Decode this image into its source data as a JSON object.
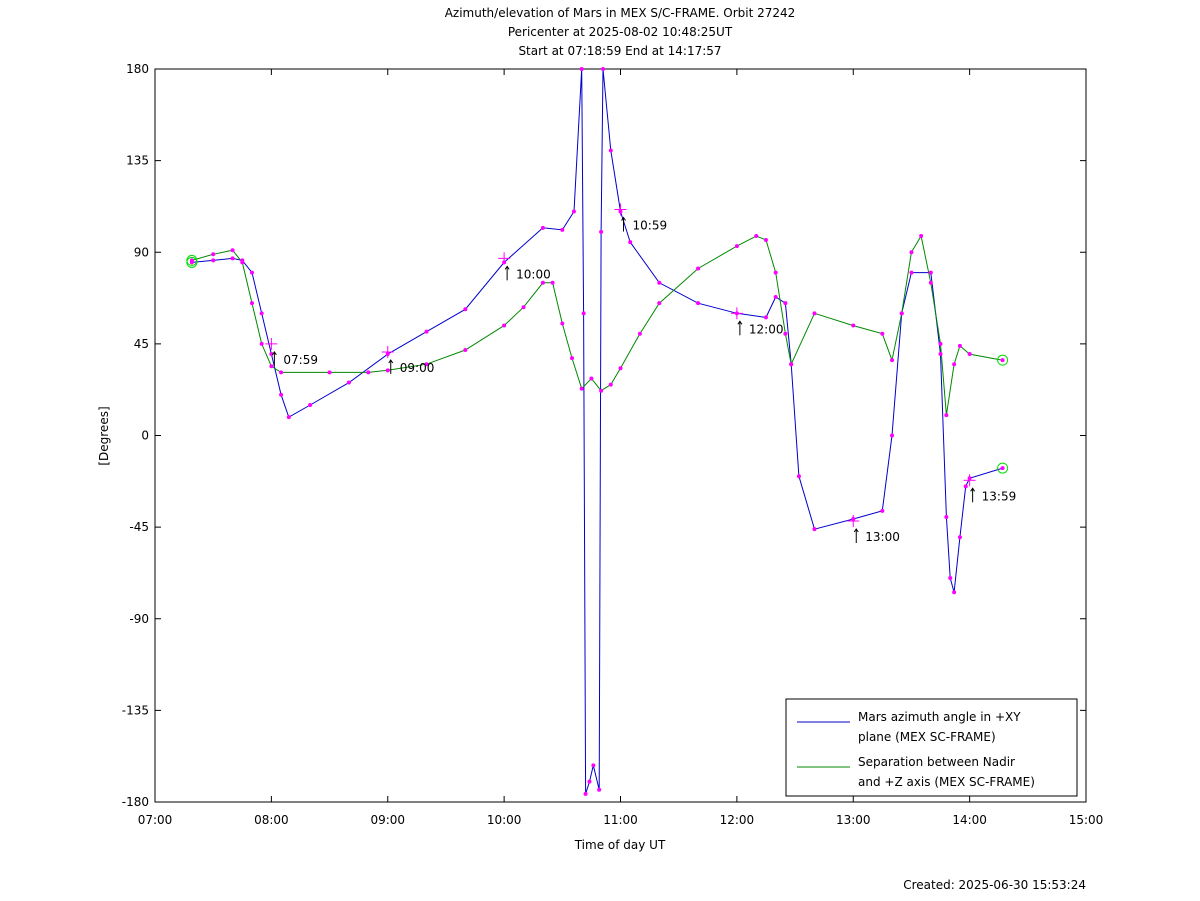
{
  "chart_data": {
    "type": "line",
    "title_lines": [
      "Azimuth/elevation of Mars in MEX S/C-FRAME.  Orbit 27242",
      "Pericenter at 2025-08-02 10:48:25UT",
      "Start at 07:18:59 End at 14:17:57"
    ],
    "xlabel": "Time of day UT",
    "ylabel": "[Degrees]",
    "xlim": [
      "07:00",
      "15:00"
    ],
    "ylim": [
      -180,
      180
    ],
    "x_ticks": [
      "07:00",
      "08:00",
      "09:00",
      "10:00",
      "11:00",
      "12:00",
      "13:00",
      "14:00",
      "15:00"
    ],
    "y_ticks": [
      180,
      135,
      90,
      45,
      0,
      -45,
      -90,
      -135,
      -180
    ],
    "legend_position": "bottom-right",
    "series": [
      {
        "name": "Mars azimuth angle in +XY plane (MEX SC-FRAME)",
        "legend_lines": [
          "Mars azimuth angle in +XY",
          "plane (MEX SC-FRAME)"
        ],
        "color": "#0000cc",
        "points": [
          [
            "07:19",
            85
          ],
          [
            "07:30",
            86
          ],
          [
            "07:40",
            87
          ],
          [
            "07:45",
            86
          ],
          [
            "07:50",
            80
          ],
          [
            "07:55",
            60
          ],
          [
            "08:00",
            40
          ],
          [
            "08:05",
            20
          ],
          [
            "08:09",
            9
          ],
          [
            "08:20",
            15
          ],
          [
            "08:40",
            26
          ],
          [
            "09:00",
            40
          ],
          [
            "09:20",
            51
          ],
          [
            "09:40",
            62
          ],
          [
            "10:00",
            85
          ],
          [
            "10:20",
            102
          ],
          [
            "10:30",
            101
          ],
          [
            "10:36",
            110
          ],
          [
            "10:40",
            180
          ],
          [
            "10:41",
            60
          ],
          [
            "10:42",
            -176
          ],
          [
            "10:44",
            -170
          ],
          [
            "10:46",
            -162
          ],
          [
            "10:49",
            -174
          ],
          [
            "10:50",
            100
          ],
          [
            "10:51",
            180
          ],
          [
            "10:55",
            140
          ],
          [
            "11:00",
            110
          ],
          [
            "11:05",
            95
          ],
          [
            "11:20",
            75
          ],
          [
            "11:40",
            65
          ],
          [
            "12:00",
            60
          ],
          [
            "12:15",
            58
          ],
          [
            "12:20",
            68
          ],
          [
            "12:25",
            65
          ],
          [
            "12:28",
            35
          ],
          [
            "12:32",
            -20
          ],
          [
            "12:40",
            -46
          ],
          [
            "13:00",
            -41
          ],
          [
            "13:15",
            -37
          ],
          [
            "13:20",
            0
          ],
          [
            "13:25",
            60
          ],
          [
            "13:30",
            80
          ],
          [
            "13:40",
            80
          ],
          [
            "13:45",
            40
          ],
          [
            "13:48",
            -40
          ],
          [
            "13:50",
            -70
          ],
          [
            "13:52",
            -77
          ],
          [
            "13:55",
            -50
          ],
          [
            "13:58",
            -25
          ],
          [
            "14:00",
            -21
          ],
          [
            "14:17",
            -16
          ]
        ]
      },
      {
        "name": "Separation between Nadir and +Z axis (MEX SC-FRAME)",
        "legend_lines": [
          "Separation between Nadir",
          "and +Z axis (MEX SC-FRAME)"
        ],
        "color": "#008800",
        "points": [
          [
            "07:19",
            86
          ],
          [
            "07:30",
            89
          ],
          [
            "07:40",
            91
          ],
          [
            "07:45",
            85
          ],
          [
            "07:50",
            65
          ],
          [
            "07:55",
            45
          ],
          [
            "08:00",
            34
          ],
          [
            "08:05",
            31
          ],
          [
            "08:30",
            31
          ],
          [
            "08:50",
            31
          ],
          [
            "09:00",
            32
          ],
          [
            "09:20",
            35
          ],
          [
            "09:40",
            42
          ],
          [
            "10:00",
            54
          ],
          [
            "10:10",
            63
          ],
          [
            "10:20",
            75
          ],
          [
            "10:25",
            75
          ],
          [
            "10:30",
            55
          ],
          [
            "10:35",
            38
          ],
          [
            "10:40",
            23
          ],
          [
            "10:45",
            28
          ],
          [
            "10:50",
            22
          ],
          [
            "10:55",
            25
          ],
          [
            "11:00",
            33
          ],
          [
            "11:10",
            50
          ],
          [
            "11:20",
            65
          ],
          [
            "11:40",
            82
          ],
          [
            "12:00",
            93
          ],
          [
            "12:10",
            98
          ],
          [
            "12:15",
            96
          ],
          [
            "12:20",
            80
          ],
          [
            "12:25",
            50
          ],
          [
            "12:28",
            35
          ],
          [
            "12:40",
            60
          ],
          [
            "13:00",
            54
          ],
          [
            "13:15",
            50
          ],
          [
            "13:20",
            37
          ],
          [
            "13:25",
            60
          ],
          [
            "13:30",
            90
          ],
          [
            "13:35",
            98
          ],
          [
            "13:40",
            75
          ],
          [
            "13:45",
            45
          ],
          [
            "13:48",
            10
          ],
          [
            "13:52",
            35
          ],
          [
            "13:55",
            44
          ],
          [
            "14:00",
            40
          ],
          [
            "14:17",
            37
          ]
        ]
      }
    ],
    "hour_labels": [
      {
        "text": "07:59",
        "x": "08:00",
        "y": 45
      },
      {
        "text": "09:00",
        "x": "09:00",
        "y": 41
      },
      {
        "text": "10:00",
        "x": "10:00",
        "y": 87
      },
      {
        "text": "10:59",
        "x": "11:00",
        "y": 111
      },
      {
        "text": "12:00",
        "x": "12:00",
        "y": 60
      },
      {
        "text": "13:00",
        "x": "13:00",
        "y": -42
      },
      {
        "text": "13:59",
        "x": "14:00",
        "y": -22
      }
    ]
  },
  "footer": {
    "created": "Created: 2025-06-30 15:53:24"
  }
}
